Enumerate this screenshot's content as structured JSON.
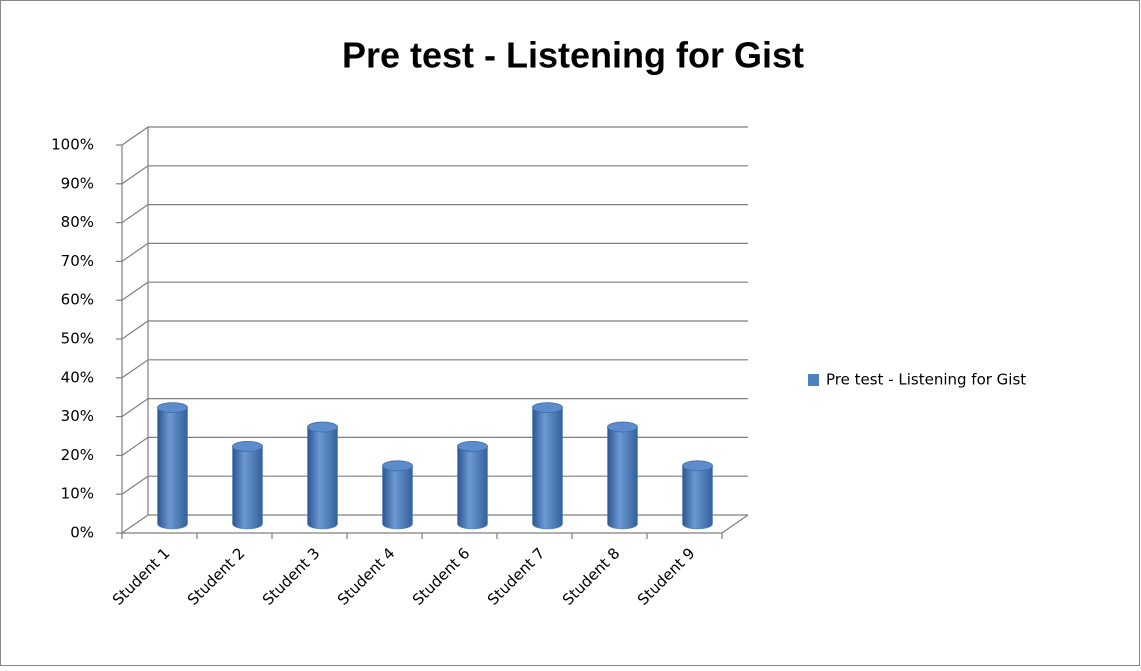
{
  "chart_data": {
    "type": "bar3d",
    "title": "Pre test - Listening for Gist",
    "categories": [
      "Student 1",
      "Student 2",
      "Student 3",
      "Student 4",
      "Student 6",
      "Student 7",
      "Student 8",
      "Student 9"
    ],
    "series": [
      {
        "name": "Pre test - Listening for Gist",
        "color": "#4f81bd",
        "values": [
          30,
          20,
          25,
          15,
          20,
          30,
          25,
          15
        ]
      }
    ],
    "ylim": [
      0,
      100
    ],
    "yticks": [
      {
        "value": 0,
        "label": "0%"
      },
      {
        "value": 10,
        "label": "10%"
      },
      {
        "value": 20,
        "label": "20%"
      },
      {
        "value": 30,
        "label": "30%"
      },
      {
        "value": 40,
        "label": "40%"
      },
      {
        "value": 50,
        "label": "50%"
      },
      {
        "value": 60,
        "label": "60%"
      },
      {
        "value": 70,
        "label": "70%"
      },
      {
        "value": 80,
        "label": "80%"
      },
      {
        "value": 90,
        "label": "90%"
      },
      {
        "value": 100,
        "label": "100%"
      }
    ],
    "grid": true,
    "legend": "right"
  }
}
